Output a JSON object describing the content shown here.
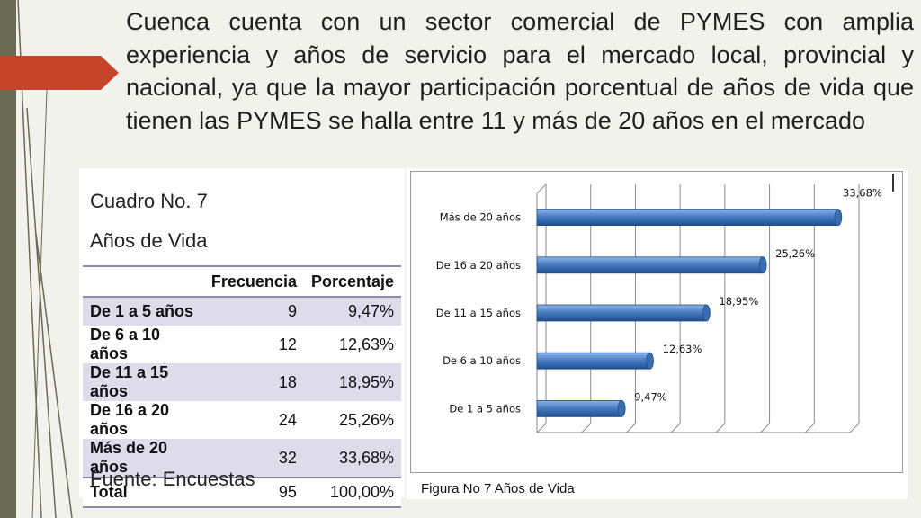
{
  "heading": "Cuenca cuenta con un sector comercial de PYMES con amplia experiencia y años de servicio para el mercado local, provincial y nacional, ya que la mayor participación porcentual de años de vida que tienen las PYMES se halla entre 11 y más de 20 años en el mercado",
  "table": {
    "title": "Cuadro No. 7",
    "subtitle": "Años de Vida",
    "headers": [
      "",
      "Frecuencia",
      "Porcentaje"
    ],
    "rows": [
      {
        "label": "De 1 a 5 años",
        "freq": "9",
        "pct": "9,47%"
      },
      {
        "label": "De 6 a 10 años",
        "freq": "12",
        "pct": "12,63%"
      },
      {
        "label": "De 11 a 15 años",
        "freq": "18",
        "pct": "18,95%"
      },
      {
        "label": "De 16 a 20 años",
        "freq": "24",
        "pct": "25,26%"
      },
      {
        "label": "Más de 20 años",
        "freq": "32",
        "pct": "33,68%"
      }
    ],
    "total": {
      "label": "Total",
      "freq": "95",
      "pct": "100,00%"
    },
    "source": "Fuente: Encuestas"
  },
  "chart_data": {
    "type": "bar",
    "orientation": "horizontal",
    "categories": [
      "Más de 20 años",
      "De 16 a 20 años",
      "De 11 a 15 años",
      "De 6 a 10 años",
      "De 1 a 5 años"
    ],
    "values": [
      33.68,
      25.26,
      18.95,
      12.63,
      9.47
    ],
    "data_labels": [
      "33,68%",
      "25,26%",
      "18,95%",
      "12,63%",
      "9,47%"
    ],
    "xlim": [
      0,
      35
    ],
    "grid": true,
    "bar_color": "#4a7ec4",
    "caption": "Figura No 7 Años de Vida"
  },
  "colors": {
    "accent": "#c6452a",
    "stripe": "#6b6a53",
    "table_shade": "#dedbeb"
  }
}
